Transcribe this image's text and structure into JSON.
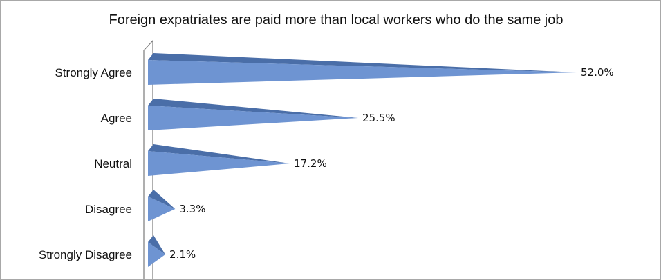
{
  "chart_data": {
    "type": "bar",
    "orientation": "horizontal",
    "style": "3d-cone",
    "title": "Foreign expatriates are paid more than local workers who do the same job",
    "categories": [
      "Strongly Agree",
      "Agree",
      "Neutral",
      "Disagree",
      "Strongly Disagree"
    ],
    "values": [
      52.0,
      25.5,
      17.2,
      3.3,
      2.1
    ],
    "value_labels": [
      "52.0%",
      "25.5%",
      "17.2%",
      "3.3%",
      "2.1%"
    ],
    "xlabel": "",
    "ylabel": "",
    "xlim": [
      0,
      52.0
    ],
    "grid": false,
    "legend": "none",
    "colors": {
      "bar_front": "#6e94d2",
      "bar_top": "#4a6ea8",
      "wall": "#7a7a7a"
    }
  }
}
